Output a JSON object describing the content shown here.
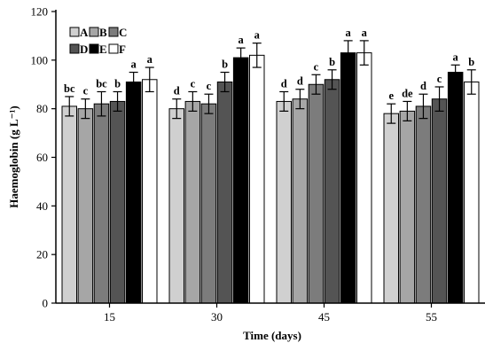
{
  "chart_data": {
    "type": "bar",
    "title": "",
    "xlabel": "Time (days)",
    "ylabel": "Haemoglobin (g L⁻¹)",
    "ylim": [
      0,
      120
    ],
    "yticks": [
      0,
      20,
      40,
      60,
      80,
      100,
      120
    ],
    "categories": [
      "15",
      "30",
      "45",
      "55"
    ],
    "grid": false,
    "legend_position": "top-left",
    "series": [
      {
        "name": "A",
        "color": "#d0d0d0",
        "values": [
          81,
          80,
          83,
          78
        ],
        "errors": [
          4,
          4,
          4,
          4
        ],
        "letters": [
          "bc",
          "d",
          "d",
          "e"
        ]
      },
      {
        "name": "B",
        "color": "#a6a6a6",
        "values": [
          80,
          83,
          84,
          79
        ],
        "errors": [
          4,
          4,
          4,
          4
        ],
        "letters": [
          "c",
          "c",
          "d",
          "de"
        ]
      },
      {
        "name": "C",
        "color": "#7c7c7c",
        "values": [
          82,
          82,
          90,
          81
        ],
        "errors": [
          5,
          4,
          4,
          5
        ],
        "letters": [
          "bc",
          "c",
          "c",
          "d"
        ]
      },
      {
        "name": "D",
        "color": "#545454",
        "values": [
          83,
          91,
          92,
          84
        ],
        "errors": [
          4,
          4,
          4,
          5
        ],
        "letters": [
          "b",
          "b",
          "b",
          "c"
        ]
      },
      {
        "name": "E",
        "color": "#000000",
        "values": [
          91,
          101,
          103,
          95
        ],
        "errors": [
          4,
          4,
          5,
          3
        ],
        "letters": [
          "a",
          "a",
          "a",
          "a"
        ]
      },
      {
        "name": "F",
        "color": "#ffffff",
        "values": [
          92,
          102,
          103,
          91
        ],
        "errors": [
          5,
          5,
          5,
          5
        ],
        "letters": [
          "a",
          "a",
          "a",
          "b"
        ]
      }
    ]
  }
}
